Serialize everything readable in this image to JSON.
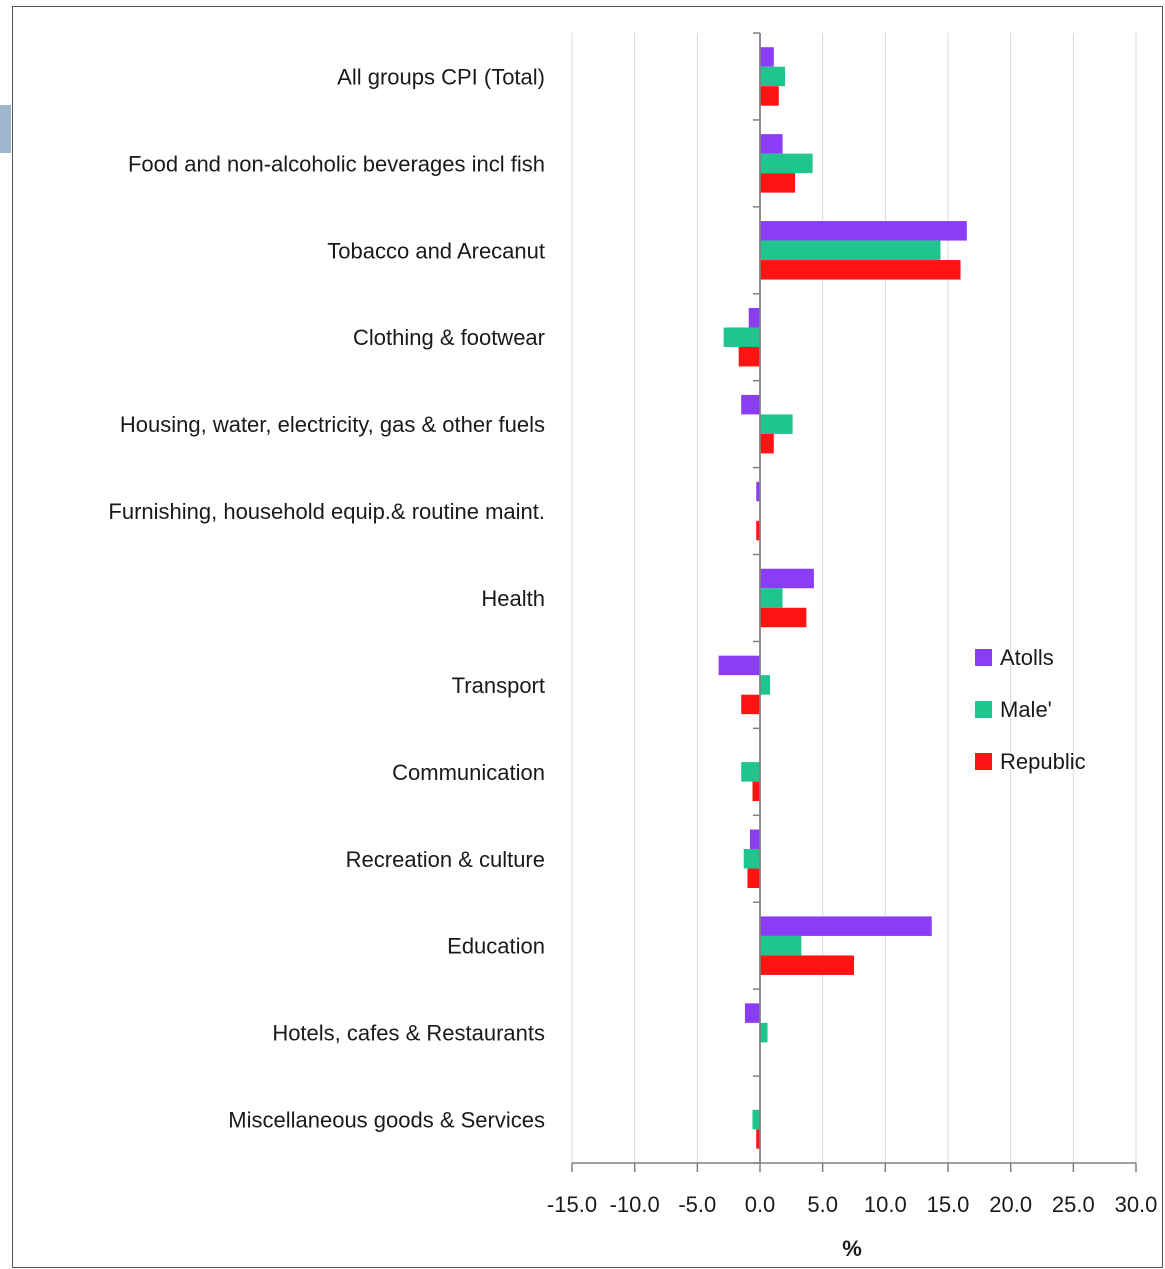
{
  "chart_data": {
    "type": "bar",
    "orientation": "horizontal",
    "categories": [
      "All groups CPI (Total)",
      "Food and non-alcoholic beverages incl fish",
      "Tobacco and Arecanut",
      "Clothing & footwear",
      "Housing, water, electricity, gas & other fuels",
      "Furnishing, household equip.& routine maint.",
      "Health",
      "Transport",
      "Communication",
      "Recreation & culture",
      "Education",
      "Hotels, cafes & Restaurants",
      "Miscellaneous goods & Services"
    ],
    "series": [
      {
        "name": "Atolls",
        "color": "#8b3cf6",
        "values": [
          1.1,
          1.8,
          16.5,
          -0.9,
          -1.5,
          -0.3,
          4.3,
          -3.3,
          0.0,
          -0.8,
          13.7,
          -1.2,
          0.0
        ]
      },
      {
        "name": "Male'",
        "color": "#1fc48f",
        "values": [
          2.0,
          4.2,
          14.4,
          -2.9,
          2.6,
          0.0,
          1.8,
          0.8,
          -1.5,
          -1.3,
          3.3,
          0.6,
          -0.6
        ]
      },
      {
        "name": "Republic",
        "color": "#ff1414",
        "values": [
          1.5,
          2.8,
          16.0,
          -1.7,
          1.1,
          -0.3,
          3.7,
          -1.5,
          -0.6,
          -1.0,
          7.5,
          0.0,
          -0.3
        ]
      }
    ],
    "xlabel": "%",
    "ylabel": "",
    "xlim": [
      -15.0,
      30.0
    ],
    "x_ticks": [
      "-15.0",
      "-10.0",
      "-5.0",
      "0.0",
      "5.0",
      "10.0",
      "15.0",
      "20.0",
      "25.0",
      "30.0"
    ],
    "grid": true,
    "legend_position": "right"
  }
}
